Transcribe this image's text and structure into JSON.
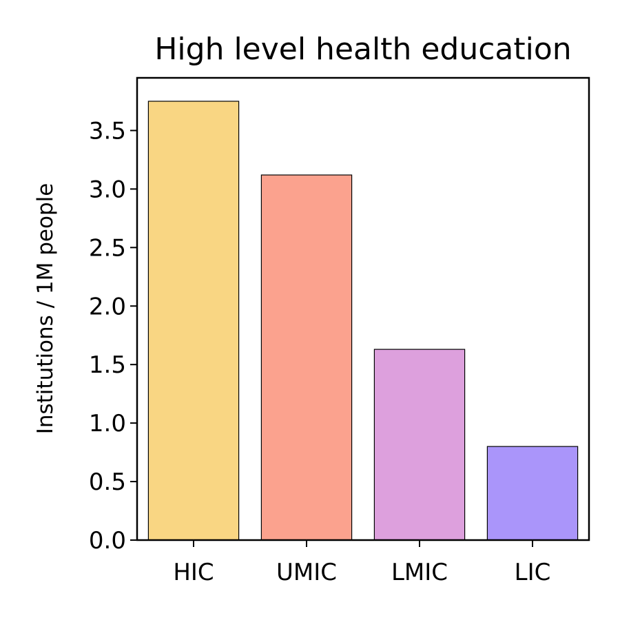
{
  "chart_data": {
    "type": "bar",
    "title": "High level health education",
    "xlabel": "",
    "ylabel": "Institutions / 1M people",
    "categories": [
      "HIC",
      "UMIC",
      "LMIC",
      "LIC"
    ],
    "values": [
      3.75,
      3.12,
      1.63,
      0.8
    ],
    "colors": [
      "#f9d683",
      "#fba28e",
      "#dda0dd",
      "#aa95fa"
    ],
    "ylim": [
      0,
      3.95
    ],
    "yticks": [
      "0.0",
      "0.5",
      "1.0",
      "1.5",
      "2.0",
      "2.5",
      "3.0",
      "3.5"
    ],
    "grid": false,
    "legend": "none"
  }
}
